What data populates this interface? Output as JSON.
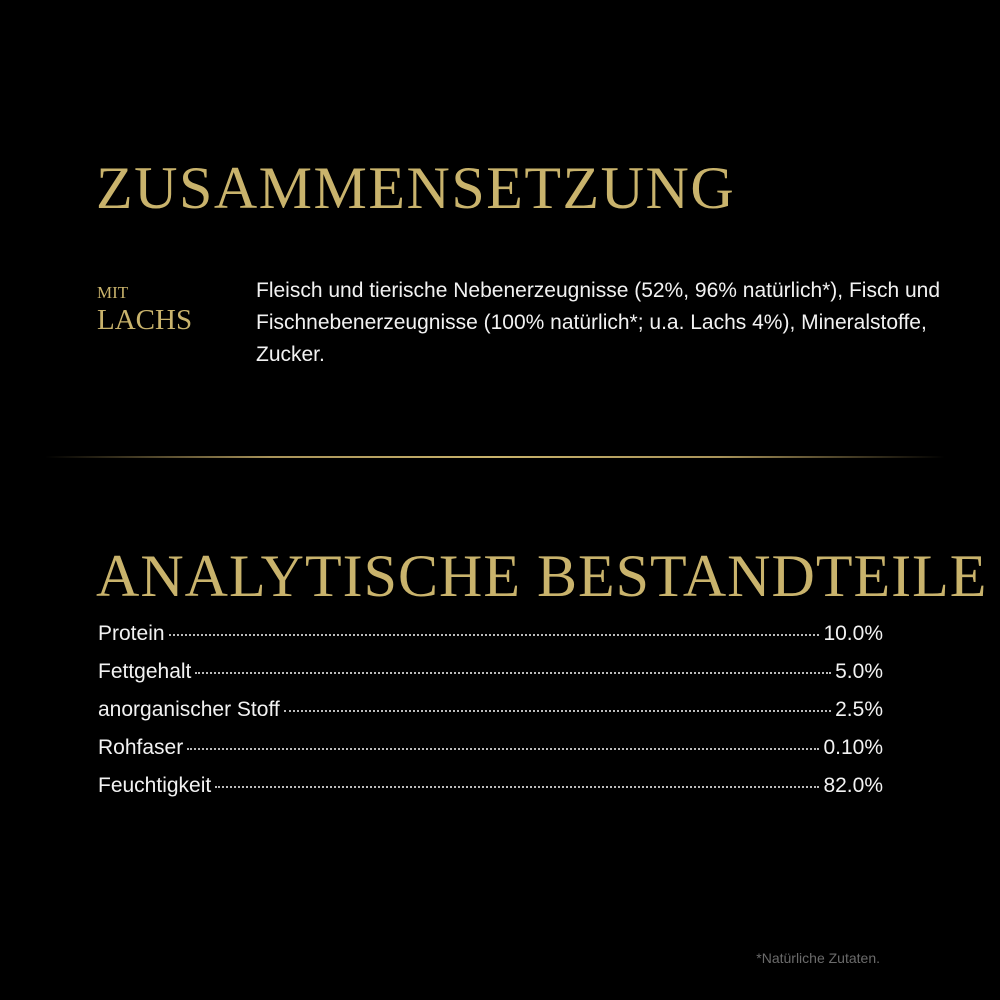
{
  "composition": {
    "title": "ZUSAMMENSETZUNG",
    "variant_prefix": "MIT",
    "variant_name": "LACHS",
    "ingredients": "Fleisch und tierische Nebenerzeugnisse (52%, 96% natürlich*), Fisch und Fischnebenerzeugnisse (100% natürlich*; u.a. Lachs 4%), Mineralstoffe, Zucker."
  },
  "analysis": {
    "title": "ANALYTISCHE BESTANDTEILE",
    "rows": [
      {
        "label": "Protein",
        "value": "10.0%"
      },
      {
        "label": "Fettgehalt",
        "value": "5.0%"
      },
      {
        "label": "anorganischer Stoff",
        "value": "2.5%"
      },
      {
        "label": "Rohfaser",
        "value": "0.10%"
      },
      {
        "label": "Feuchtigkeit",
        "value": "82.0%"
      }
    ]
  },
  "footnote": "*Natürliche Zutaten.",
  "colors": {
    "accent_gold": "#c9b36c",
    "background": "#000000"
  }
}
